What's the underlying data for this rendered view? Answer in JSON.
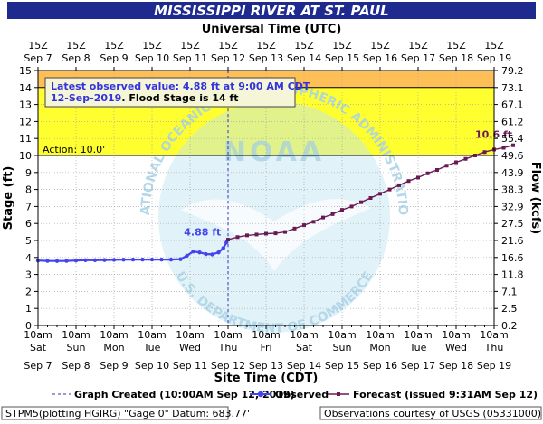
{
  "header": {
    "title": "MISSISSIPPI RIVER AT ST. PAUL",
    "top_axis_title": "Universal Time (UTC)"
  },
  "colors": {
    "title_bg": "#1f2a8f",
    "flood_band": "#ffff30",
    "moderate_band": "#ffbf57",
    "observed": "#4444ee",
    "forecast": "#6a1a53",
    "watermark": "#bfe3f0"
  },
  "chart_data": {
    "type": "line",
    "x_unit": "date-time",
    "xlim": [
      "2019-09-07 10:00",
      "2019-09-19 10:00"
    ],
    "ylim": [
      0,
      15
    ],
    "ylabel": "Stage (ft)",
    "y2label": "Flow (kcfs)",
    "xlabel": "Site Time (CDT)",
    "grid": true,
    "y_ticks": [
      0,
      1,
      2,
      3,
      4,
      5,
      6,
      7,
      8,
      9,
      10,
      11,
      12,
      13,
      14,
      15
    ],
    "y2_ticks": [
      {
        "stage": 0,
        "label": "0.2"
      },
      {
        "stage": 1,
        "label": "2.5"
      },
      {
        "stage": 2,
        "label": "7.1"
      },
      {
        "stage": 3,
        "label": "11.8"
      },
      {
        "stage": 4,
        "label": "16.6"
      },
      {
        "stage": 5,
        "label": "21.6"
      },
      {
        "stage": 6,
        "label": "27.5"
      },
      {
        "stage": 7,
        "label": "32.9"
      },
      {
        "stage": 8,
        "label": "38.3"
      },
      {
        "stage": 9,
        "label": "43.9"
      },
      {
        "stage": 10,
        "label": "49.6"
      },
      {
        "stage": 11,
        "label": "55.4"
      },
      {
        "stage": 12,
        "label": "61.2"
      },
      {
        "stage": 13,
        "label": "67.1"
      },
      {
        "stage": 14,
        "label": "73.1"
      },
      {
        "stage": 15,
        "label": "79.2"
      }
    ],
    "top_ticks": [
      {
        "hour": "15Z",
        "date": "Sep 7"
      },
      {
        "hour": "15Z",
        "date": "Sep 8"
      },
      {
        "hour": "15Z",
        "date": "Sep 9"
      },
      {
        "hour": "15Z",
        "date": "Sep 10"
      },
      {
        "hour": "15Z",
        "date": "Sep 11"
      },
      {
        "hour": "15Z",
        "date": "Sep 12"
      },
      {
        "hour": "15Z",
        "date": "Sep 13"
      },
      {
        "hour": "15Z",
        "date": "Sep 14"
      },
      {
        "hour": "15Z",
        "date": "Sep 15"
      },
      {
        "hour": "15Z",
        "date": "Sep 16"
      },
      {
        "hour": "15Z",
        "date": "Sep 17"
      },
      {
        "hour": "15Z",
        "date": "Sep 18"
      },
      {
        "hour": "15Z",
        "date": "Sep 19"
      }
    ],
    "bottom_ticks": [
      {
        "time": "10am",
        "day": "Sat",
        "date": "Sep 7"
      },
      {
        "time": "10am",
        "day": "Sun",
        "date": "Sep 8"
      },
      {
        "time": "10am",
        "day": "Mon",
        "date": "Sep 9"
      },
      {
        "time": "10am",
        "day": "Tue",
        "date": "Sep 10"
      },
      {
        "time": "10am",
        "day": "Wed",
        "date": "Sep 11"
      },
      {
        "time": "10am",
        "day": "Thu",
        "date": "Sep 12"
      },
      {
        "time": "10am",
        "day": "Fri",
        "date": "Sep 13"
      },
      {
        "time": "10am",
        "day": "Sat",
        "date": "Sep 14"
      },
      {
        "time": "10am",
        "day": "Sun",
        "date": "Sep 15"
      },
      {
        "time": "10am",
        "day": "Mon",
        "date": "Sep 16"
      },
      {
        "time": "10am",
        "day": "Tue",
        "date": "Sep 17"
      },
      {
        "time": "10am",
        "day": "Wed",
        "date": "Sep 18"
      },
      {
        "time": "10am",
        "day": "Thu",
        "date": "Sep 19"
      }
    ],
    "bands": [
      {
        "from": 10,
        "to": 14,
        "color": "#ffff30"
      },
      {
        "from": 14,
        "to": 15,
        "color": "#ffbf57"
      }
    ],
    "action": {
      "value": 10,
      "label": "Action: 10.0'"
    },
    "flood_stage": 14,
    "graph_created": "2019-09-12 10:00",
    "series": [
      {
        "name": "Observed",
        "points": [
          [
            "2019-09-07 10:00",
            3.82
          ],
          [
            "2019-09-07 16:00",
            3.8
          ],
          [
            "2019-09-07 22:00",
            3.79
          ],
          [
            "2019-09-08 04:00",
            3.8
          ],
          [
            "2019-09-08 10:00",
            3.82
          ],
          [
            "2019-09-08 16:00",
            3.84
          ],
          [
            "2019-09-08 22:00",
            3.84
          ],
          [
            "2019-09-09 04:00",
            3.85
          ],
          [
            "2019-09-09 10:00",
            3.86
          ],
          [
            "2019-09-09 16:00",
            3.87
          ],
          [
            "2019-09-09 22:00",
            3.88
          ],
          [
            "2019-09-10 04:00",
            3.88
          ],
          [
            "2019-09-10 10:00",
            3.88
          ],
          [
            "2019-09-10 16:00",
            3.88
          ],
          [
            "2019-09-10 22:00",
            3.88
          ],
          [
            "2019-09-11 04:00",
            3.9
          ],
          [
            "2019-09-11 08:00",
            4.1
          ],
          [
            "2019-09-11 12:00",
            4.35
          ],
          [
            "2019-09-11 16:00",
            4.3
          ],
          [
            "2019-09-11 20:00",
            4.2
          ],
          [
            "2019-09-12 00:00",
            4.18
          ],
          [
            "2019-09-12 04:00",
            4.3
          ],
          [
            "2019-09-12 07:00",
            4.55
          ],
          [
            "2019-09-12 09:00",
            4.88
          ]
        ]
      },
      {
        "name": "Forecast",
        "points": [
          [
            "2019-09-12 10:00",
            5.05
          ],
          [
            "2019-09-12 16:00",
            5.2
          ],
          [
            "2019-09-12 22:00",
            5.3
          ],
          [
            "2019-09-13 04:00",
            5.35
          ],
          [
            "2019-09-13 10:00",
            5.4
          ],
          [
            "2019-09-13 16:00",
            5.42
          ],
          [
            "2019-09-13 22:00",
            5.5
          ],
          [
            "2019-09-14 04:00",
            5.7
          ],
          [
            "2019-09-14 10:00",
            5.9
          ],
          [
            "2019-09-14 16:00",
            6.1
          ],
          [
            "2019-09-14 22:00",
            6.35
          ],
          [
            "2019-09-15 04:00",
            6.55
          ],
          [
            "2019-09-15 10:00",
            6.8
          ],
          [
            "2019-09-15 16:00",
            7.0
          ],
          [
            "2019-09-15 22:00",
            7.25
          ],
          [
            "2019-09-16 04:00",
            7.5
          ],
          [
            "2019-09-16 10:00",
            7.75
          ],
          [
            "2019-09-16 16:00",
            8.0
          ],
          [
            "2019-09-16 22:00",
            8.25
          ],
          [
            "2019-09-17 04:00",
            8.5
          ],
          [
            "2019-09-17 10:00",
            8.7
          ],
          [
            "2019-09-17 16:00",
            8.95
          ],
          [
            "2019-09-17 22:00",
            9.15
          ],
          [
            "2019-09-18 04:00",
            9.4
          ],
          [
            "2019-09-18 10:00",
            9.6
          ],
          [
            "2019-09-18 16:00",
            9.8
          ],
          [
            "2019-09-18 22:00",
            10.0
          ],
          [
            "2019-09-19 04:00",
            10.2
          ],
          [
            "2019-09-19 10:00",
            10.35
          ],
          [
            "2019-09-19 16:00",
            10.45
          ],
          [
            "2019-09-19 22:00",
            10.6
          ]
        ]
      }
    ],
    "annotations": {
      "observed_value": "4.88 ft",
      "forecast_peak": "10.6 ft"
    }
  },
  "info_box": {
    "line1": "Latest observed value: 4.88 ft at 9:00 AM CDT",
    "date": "12-Sep-2019",
    "flood": ". Flood Stage is 14 ft"
  },
  "legend": {
    "graph_created": "Graph Created (10:00AM Sep 12, 2019)",
    "observed": "Observed",
    "forecast": "Forecast (issued 9:31AM Sep 12)"
  },
  "footer": {
    "left": "STPM5(plotting HGIRG) \"Gage 0\" Datum: 683.77'",
    "right": "Observations courtesy of USGS (05331000)"
  },
  "watermark": {
    "ring_top": "NATIONAL OCEANIC AND ATMOSPHERIC ADMINISTRATION",
    "ring_bottom": "U.S. DEPARTMENT OF COMMERCE",
    "center": "NOAA"
  }
}
